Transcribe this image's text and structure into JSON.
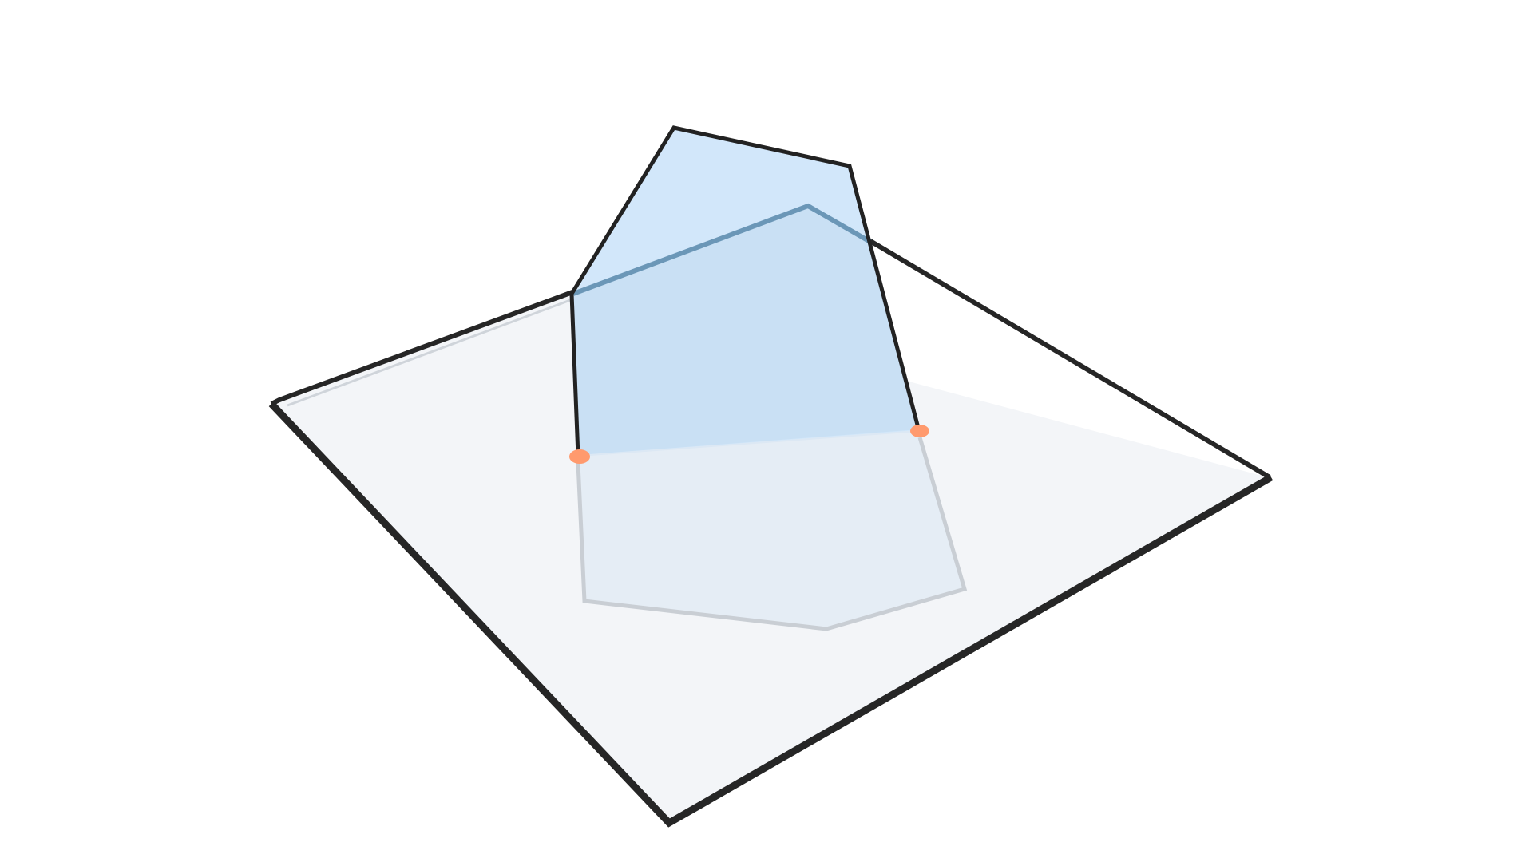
{
  "diagram": {
    "description_items": [],
    "colors": {
      "background": "#ffffff",
      "plane_fill": "#f3f5f8",
      "plane_edge": "#262626",
      "plane_edge_inner": "#cfd4da",
      "polygon_fill": "#cfe5f8",
      "polygon_fill_under_plane": "#c8dff3",
      "polygon_edge": "#222222",
      "polygon_edge_through_plane": "#6b97b7",
      "reflection_fill": "#e5edf5",
      "reflection_edge": "#c9ced4",
      "intersection_point": "#ff9a6e"
    },
    "elements": {
      "plane": "horizontal-plane",
      "upper_polygon": "polygon-above-plane",
      "lower_polygon": "polygon-below-plane-ghost",
      "intersection_points": [
        "intersection-point-left",
        "intersection-point-right"
      ]
    }
  }
}
